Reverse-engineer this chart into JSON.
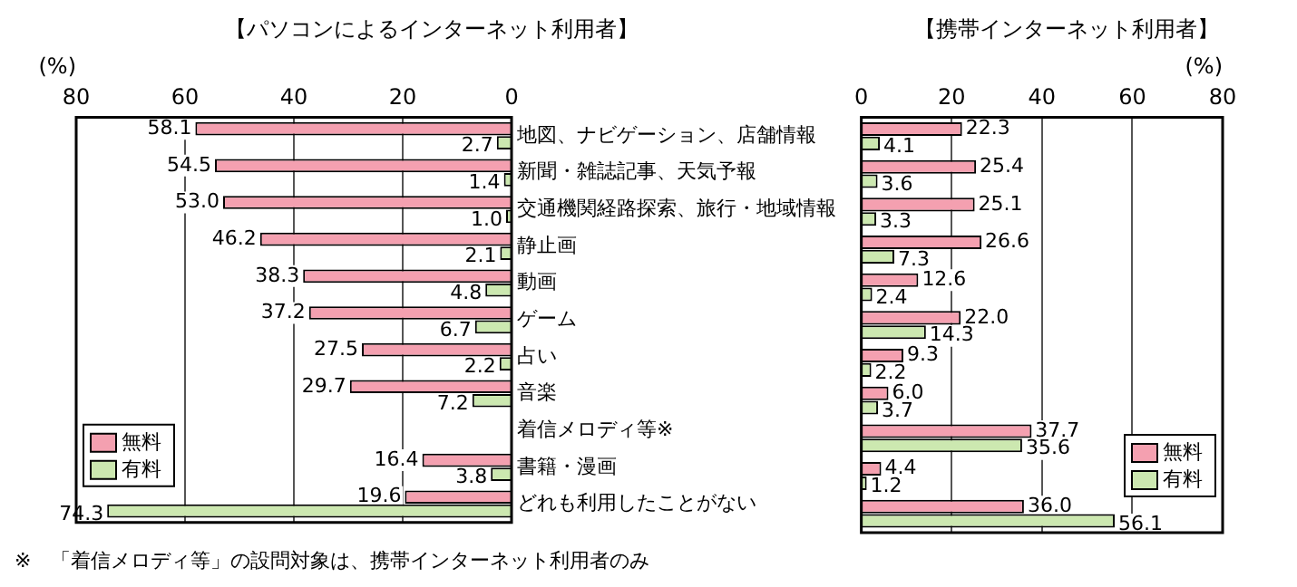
{
  "chart_data": [
    {
      "type": "bar",
      "orientation": "horizontal",
      "title": "【パソコンによるインターネット利用者】",
      "xlabel": "(%)",
      "categories": [
        "地図、ナビゲーション、店舗情報",
        "新聞・雑誌記事、天気予報",
        "交通機関経路探索、旅行・地域情報",
        "静止画",
        "動画",
        "ゲーム",
        "占い",
        "音楽",
        "着信メロディ等※",
        "書籍・漫画",
        "どれも利用したことがない"
      ],
      "series": [
        {
          "name": "無料",
          "color": "#f4a0b0",
          "values": [
            58.1,
            54.5,
            53.0,
            46.2,
            38.3,
            37.2,
            27.5,
            29.7,
            null,
            16.4,
            19.6
          ],
          "value_labels": [
            "58.1",
            "54.5",
            "53.0",
            "46.2",
            "38.3",
            "37.2",
            "27.5",
            "29.7",
            null,
            "16.4",
            "19.6"
          ]
        },
        {
          "name": "有料",
          "color": "#cce8b0",
          "values": [
            2.7,
            1.4,
            1.0,
            2.1,
            4.8,
            6.7,
            2.2,
            7.2,
            null,
            3.8,
            74.3
          ],
          "value_labels": [
            "2.7",
            "1.4",
            "1.0",
            "2.1",
            "4.8",
            "6.7",
            "2.2",
            "7.2",
            null,
            "3.8",
            "74.3"
          ]
        }
      ],
      "xlim": [
        80,
        0
      ],
      "xticks": [
        80,
        60,
        40,
        20,
        0
      ],
      "grid": "x",
      "legend": "bottom left",
      "annotations": [
        "※　「着信メロディ等」の設問対象は、携帯インターネット利用者のみ"
      ]
    },
    {
      "type": "bar",
      "orientation": "horizontal",
      "title": "【携帯インターネット利用者】",
      "xlabel": "(%)",
      "categories": [
        null,
        null,
        null,
        null,
        null,
        null,
        null,
        null,
        null,
        null,
        null
      ],
      "series": [
        {
          "name": "無料",
          "color": "#f4a0b0",
          "values": [
            22.3,
            25.4,
            25.1,
            26.6,
            12.6,
            22.0,
            9.3,
            6.0,
            37.7,
            4.4,
            36.0
          ],
          "value_labels": [
            "22.3",
            "25.4",
            "25.1",
            "26.6",
            "12.6",
            "22.0",
            "9.3",
            "6.0",
            "37.7",
            "4.4",
            "36.0"
          ]
        },
        {
          "name": "有料",
          "color": "#cce8b0",
          "values": [
            4.1,
            3.6,
            3.3,
            7.3,
            2.4,
            14.3,
            2.2,
            3.7,
            35.6,
            1.2,
            56.1
          ],
          "value_labels": [
            "4.1",
            "3.6",
            "3.3",
            "7.3",
            "2.4",
            "14.3",
            "2.2",
            "3.7",
            "35.6",
            "1.2",
            "56.1"
          ]
        }
      ],
      "xlim": [
        0,
        80
      ],
      "xticks": [
        0,
        20,
        40,
        60,
        80
      ],
      "grid": "x",
      "legend": "bottom right",
      "tick_labels": "x"
    }
  ]
}
